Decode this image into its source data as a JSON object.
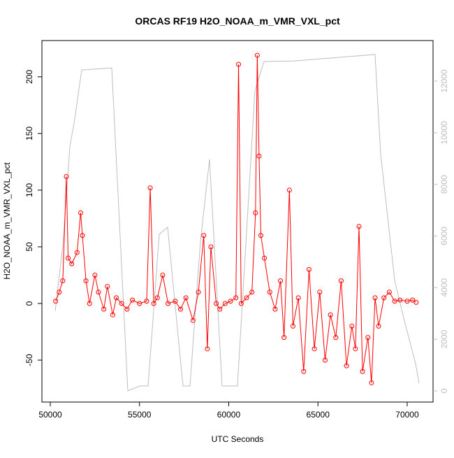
{
  "chart_data": {
    "type": "line",
    "title": "ORCAS RF19 H2O_NOAA_m_VMR_VXL_pct",
    "xlabel": "UTC Seconds",
    "ylabel": "H2O_NOAA_m_VMR_VXL_pct",
    "xlim": [
      49530,
      71450
    ],
    "ylim": [
      -87,
      232
    ],
    "y2lim": [
      -433,
      13571
    ],
    "xticks": [
      50000,
      55000,
      60000,
      65000,
      70000
    ],
    "yticks": [
      -50,
      0,
      50,
      100,
      150,
      200
    ],
    "y2ticks": [
      0,
      2000,
      4000,
      6000,
      8000,
      10000,
      12000
    ],
    "series": [
      {
        "color": "#bebebe",
        "axis": "y2",
        "markers": false,
        "x": [
          50274,
          50705,
          51096,
          51370,
          51761,
          53444,
          54344,
          55010,
          55480,
          56106,
          56575,
          57436,
          57828,
          58415,
          58924,
          59628,
          60489,
          61468,
          61977,
          63620,
          68200,
          68513,
          69295,
          69804,
          70470,
          70665
        ],
        "values": [
          3090,
          5660,
          9450,
          10540,
          12430,
          12510,
          0,
          190,
          190,
          6070,
          6340,
          190,
          190,
          5800,
          8970,
          190,
          190,
          11620,
          12760,
          12780,
          13030,
          9180,
          4300,
          2820,
          1060,
          300
        ]
      },
      {
        "color": "#ff0000",
        "axis": "y",
        "markers": true,
        "x": [
          50300,
          50500,
          50700,
          50900,
          51000,
          51200,
          51500,
          51700,
          51800,
          52000,
          52200,
          52500,
          52700,
          53000,
          53200,
          53500,
          53700,
          54000,
          54300,
          54600,
          55000,
          55400,
          55600,
          55800,
          56000,
          56300,
          56600,
          57000,
          57300,
          57600,
          58000,
          58300,
          58600,
          58800,
          59000,
          59300,
          59500,
          59800,
          60100,
          60400,
          60550,
          60700,
          61000,
          61300,
          61500,
          61600,
          61700,
          61800,
          62000,
          62300,
          62600,
          62900,
          63100,
          63400,
          63600,
          63900,
          64200,
          64500,
          64800,
          65100,
          65400,
          65700,
          66000,
          66300,
          66600,
          66900,
          67100,
          67300,
          67500,
          67800,
          68000,
          68200,
          68400,
          68700,
          69000,
          69300,
          69600,
          70000,
          70300,
          70500
        ],
        "values": [
          2,
          10,
          20,
          112,
          40,
          35,
          45,
          80,
          60,
          20,
          0,
          25,
          10,
          -5,
          15,
          -10,
          5,
          0,
          -5,
          3,
          0,
          2,
          102,
          0,
          5,
          25,
          0,
          2,
          -5,
          5,
          -15,
          10,
          60,
          -40,
          50,
          0,
          -5,
          0,
          2,
          5,
          211,
          0,
          5,
          10,
          80,
          219,
          130,
          60,
          40,
          10,
          -5,
          20,
          -30,
          100,
          -20,
          5,
          -60,
          30,
          -40,
          10,
          -50,
          -10,
          -30,
          20,
          -55,
          -20,
          -40,
          68,
          -60,
          -30,
          -70,
          5,
          -20,
          5,
          10,
          2,
          3,
          2,
          3,
          1
        ]
      }
    ]
  }
}
